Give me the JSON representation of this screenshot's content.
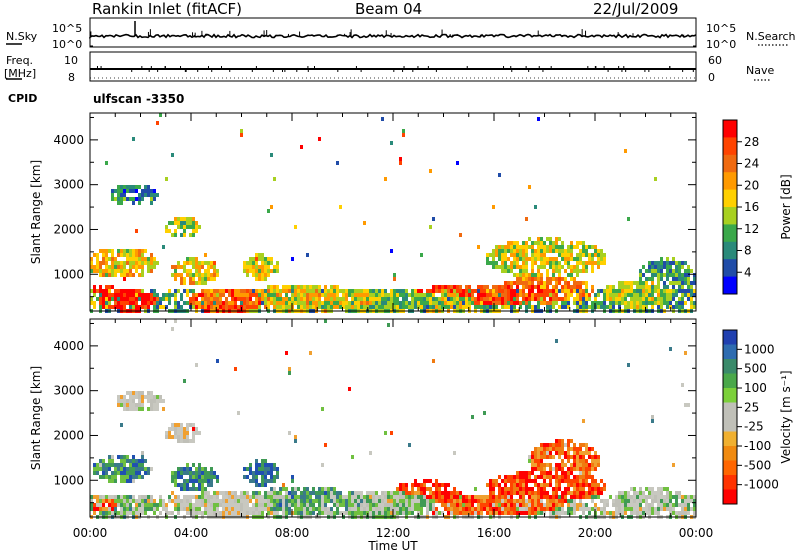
{
  "header": {
    "station": "Rankin Inlet (fitACF)",
    "beam": "Beam 04",
    "date": "22/Jul/2009"
  },
  "sky_panel": {
    "left_label": "N.Sky",
    "right_label": "N.Search",
    "tick_high": "10^5",
    "tick_low": "10^0"
  },
  "freq_panel": {
    "left_label_1": "Freq.",
    "left_label_2": "[MHz]",
    "right_label": "Nave",
    "left_ticks": [
      "10",
      "8"
    ],
    "right_ticks": [
      "60",
      "0"
    ]
  },
  "cpid": {
    "label": "CPID",
    "value": "ulfscan -3350"
  },
  "chart_data": [
    {
      "type": "heatmap",
      "quantity": "Power",
      "ylabel": "Slant Range [km]",
      "xlabel": "Time UT",
      "ylim": [
        180,
        4600
      ],
      "y_ticks": [
        1000,
        2000,
        3000,
        4000
      ],
      "x_ticks": [
        "00:00",
        "04:00",
        "08:00",
        "12:00",
        "16:00",
        "20:00",
        "00:00"
      ],
      "colorbar": {
        "label": "Power [dB]",
        "ticks": [
          "28",
          "24",
          "20",
          "16",
          "12",
          "8",
          "4"
        ],
        "colors_top_to_bottom": [
          "#ff0000",
          "#ff4400",
          "#f06a10",
          "#ff9a00",
          "#ffd000",
          "#a8d020",
          "#3aa84a",
          "#2a8a7a",
          "#204ca8",
          "#0000ff"
        ]
      }
    },
    {
      "type": "heatmap",
      "quantity": "Velocity",
      "ylabel": "Slant Range [km]",
      "xlabel": "Time UT",
      "ylim": [
        180,
        4600
      ],
      "y_ticks": [
        1000,
        2000,
        3000,
        4000
      ],
      "x_ticks": [
        "00:00",
        "04:00",
        "08:00",
        "12:00",
        "16:00",
        "20:00",
        "00:00"
      ],
      "colorbar": {
        "label": "Velocity [m s⁻¹]",
        "ticks": [
          "1000",
          "500",
          "100",
          "25",
          "-25",
          "-100",
          "-500",
          "-1000"
        ],
        "colors_top_to_bottom": [
          "#2040b0",
          "#2e6cb0",
          "#3a8a6a",
          "#4aa84a",
          "#7cd03a",
          "#c0c0b8",
          "#c0c0b8",
          "#f0b030",
          "#f08a10",
          "#ff6600",
          "#ff3300",
          "#ff0000"
        ]
      }
    }
  ]
}
